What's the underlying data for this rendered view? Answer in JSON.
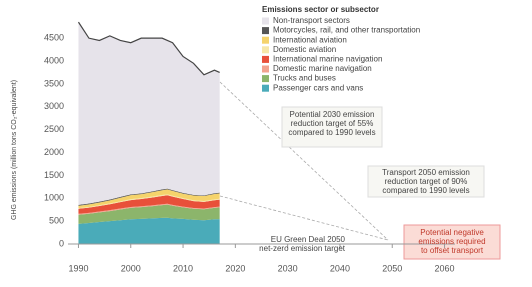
{
  "chart_data": {
    "type": "stacked-area",
    "y_label": "GHG emissions (million tons CO₂-equivalent)",
    "legend_title": "Emissions sector or subsector",
    "x": [
      1990,
      1992,
      1994,
      1996,
      1998,
      2000,
      2002,
      2004,
      2006,
      2007,
      2008,
      2010,
      2012,
      2014,
      2016,
      2017
    ],
    "series": [
      {
        "name": "Passenger cars and vans",
        "color": "#4aabb9",
        "values": [
          440,
          460,
          480,
          500,
          520,
          540,
          550,
          560,
          570,
          575,
          560,
          550,
          530,
          520,
          540,
          545
        ]
      },
      {
        "name": "Trucks and buses",
        "color": "#8cb56b",
        "values": [
          200,
          200,
          210,
          220,
          235,
          250,
          255,
          265,
          280,
          285,
          275,
          250,
          240,
          240,
          250,
          255
        ]
      },
      {
        "name": "Domestic marine navigation",
        "color": "#f2a38f",
        "values": [
          20,
          20,
          20,
          20,
          20,
          20,
          20,
          20,
          20,
          20,
          20,
          18,
          18,
          17,
          17,
          17
        ]
      },
      {
        "name": "International marine navigation",
        "color": "#e8503a",
        "values": [
          110,
          115,
          120,
          130,
          140,
          150,
          160,
          170,
          180,
          185,
          180,
          165,
          150,
          145,
          150,
          152
        ]
      },
      {
        "name": "Domestic aviation",
        "color": "#f7e7a8",
        "values": [
          15,
          15,
          16,
          17,
          18,
          20,
          19,
          20,
          21,
          21,
          20,
          19,
          18,
          18,
          19,
          19
        ]
      },
      {
        "name": "International aviation",
        "color": "#f5d36b",
        "values": [
          50,
          55,
          60,
          68,
          78,
          88,
          87,
          95,
          105,
          108,
          106,
          100,
          104,
          108,
          118,
          120
        ]
      },
      {
        "name": "Motorcycles, rail, and other transportation",
        "color": "#555555",
        "values": [
          20,
          20,
          19,
          19,
          18,
          18,
          17,
          17,
          17,
          17,
          16,
          15,
          15,
          15,
          15,
          15
        ]
      },
      {
        "name": "Non-transport sectors",
        "color": "#e6e3ea",
        "values": [
          3995,
          3615,
          3525,
          3576,
          3421,
          3314,
          3392,
          3353,
          3307,
          3239,
          3223,
          2983,
          2875,
          2637,
          2691,
          2627
        ]
      }
    ],
    "xlim": [
      1988,
      2062
    ],
    "xticks": [
      1990,
      2000,
      2010,
      2020,
      2030,
      2040,
      2050,
      2060
    ],
    "ylim": [
      0,
      4700
    ],
    "yticks": [
      0,
      500,
      1000,
      1500,
      2000,
      2500,
      3000,
      3500,
      4000,
      4500
    ],
    "annotations": [
      {
        "lines": [
          "Potential 2030 emission",
          "reduction target of 55%",
          "compared to 1990 levels"
        ]
      },
      {
        "lines": [
          "Transport 2050 emission",
          "reduction target of 90%",
          "compared to 1990 levels"
        ]
      },
      {
        "lines": [
          "EU Green Deal 2050",
          "net-zero emission target"
        ]
      },
      {
        "lines": [
          "Potential negative",
          "emissions required",
          "to offset transport"
        ]
      }
    ]
  }
}
